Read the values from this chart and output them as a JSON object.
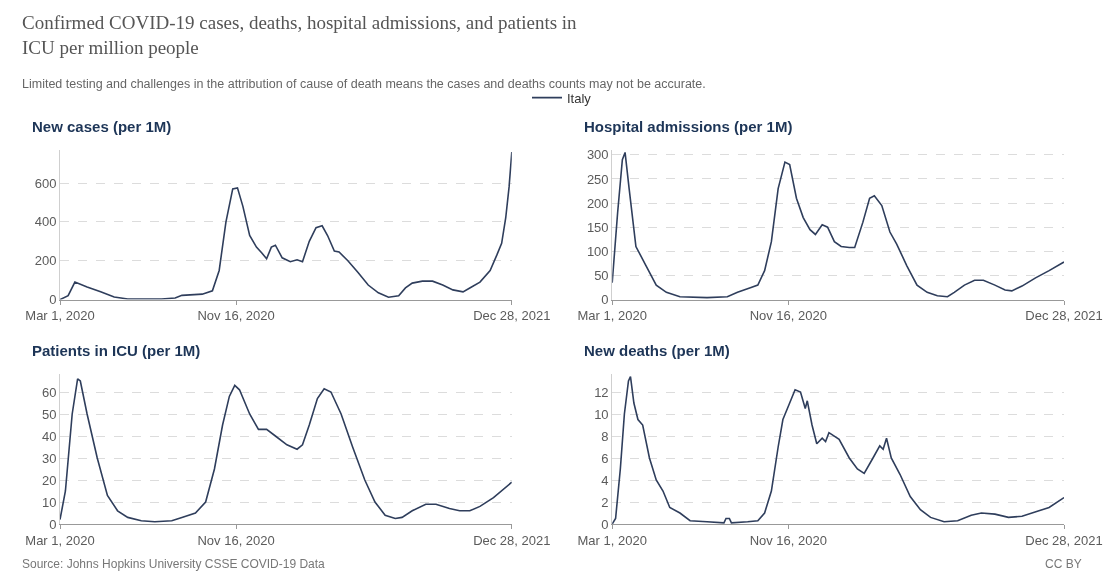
{
  "chart_data": [
    {
      "type": "line",
      "title": "New cases (per 1M)",
      "legend": "top",
      "grid": "y",
      "line_style": "solid",
      "annotations": [
        "Confirmed COVID-19 cases, deaths, hospital admissions, and patients in ICU per million people",
        "Limited testing and challenges in the attribution of cause of death means the cases and deaths counts may not be accurate.",
        "Source: Johns Hopkins University CSSE COVID-19 Data",
        "CC BY"
      ],
      "xlim": [
        "2020-03-01",
        "2021-12-28"
      ],
      "xticks": [
        {
          "value": "2020-03-01",
          "label": "Mar 1, 2020"
        },
        {
          "value": "2020-11-16",
          "label": "Nov 16, 2020"
        },
        {
          "value": "2021-12-28",
          "label": "Dec 28, 2021"
        }
      ],
      "ylim": [
        0,
        770
      ],
      "yticks": [
        0,
        200,
        400,
        600
      ],
      "series": [
        {
          "name": "Italy",
          "color": "#2f3e5c",
          "x": [
            "2020-03-01",
            "2020-03-13",
            "2020-03-23",
            "2020-04-10",
            "2020-04-30",
            "2020-05-20",
            "2020-06-09",
            "2020-07-29",
            "2020-08-18",
            "2020-08-28",
            "2020-09-27",
            "2020-10-12",
            "2020-10-22",
            "2020-11-01",
            "2020-11-11",
            "2020-11-18",
            "2020-11-26",
            "2020-12-06",
            "2020-12-16",
            "2020-12-24",
            "2020-12-31",
            "2021-01-07",
            "2021-01-13",
            "2021-01-23",
            "2021-02-04",
            "2021-02-14",
            "2021-02-22",
            "2021-03-04",
            "2021-03-14",
            "2021-03-23",
            "2021-03-31",
            "2021-04-10",
            "2021-04-17",
            "2021-04-30",
            "2021-05-15",
            "2021-05-30",
            "2021-06-14",
            "2021-06-29",
            "2021-07-14",
            "2021-07-24",
            "2021-08-03",
            "2021-08-18",
            "2021-09-02",
            "2021-09-17",
            "2021-10-02",
            "2021-10-17",
            "2021-10-27",
            "2021-11-11",
            "2021-11-26",
            "2021-12-06",
            "2021-12-13",
            "2021-12-19",
            "2021-12-24",
            "2021-12-28"
          ],
          "values": [
            0,
            20,
            90,
            65,
            40,
            13,
            3,
            3,
            8,
            22,
            28,
            45,
            150,
            400,
            570,
            575,
            480,
            330,
            270,
            240,
            210,
            270,
            280,
            215,
            195,
            205,
            195,
            300,
            370,
            380,
            330,
            250,
            245,
            200,
            140,
            75,
            35,
            12,
            20,
            60,
            85,
            95,
            95,
            75,
            50,
            40,
            60,
            90,
            150,
            230,
            290,
            420,
            580,
            760
          ]
        }
      ]
    },
    {
      "type": "line",
      "title": "Hospital admissions (per 1M)",
      "grid": "y",
      "line_style": "solid",
      "xlim": [
        "2020-03-01",
        "2021-12-28"
      ],
      "xticks": [
        {
          "value": "2020-03-01",
          "label": "Mar 1, 2020"
        },
        {
          "value": "2020-11-16",
          "label": "Nov 16, 2020"
        },
        {
          "value": "2021-12-28",
          "label": "Dec 28, 2021"
        }
      ],
      "ylim": [
        0,
        310
      ],
      "yticks": [
        0,
        50,
        100,
        150,
        200,
        250,
        300
      ],
      "series": [
        {
          "name": "Italy",
          "color": "#2f3e5c",
          "x": [
            "2020-03-01",
            "2020-03-09",
            "2020-03-16",
            "2020-03-20",
            "2020-03-26",
            "2020-04-05",
            "2020-04-20",
            "2020-05-05",
            "2020-05-20",
            "2020-06-09",
            "2020-07-19",
            "2020-08-18",
            "2020-09-02",
            "2020-09-22",
            "2020-10-02",
            "2020-10-12",
            "2020-10-22",
            "2020-11-01",
            "2020-11-11",
            "2020-11-18",
            "2020-11-28",
            "2020-12-08",
            "2020-12-18",
            "2020-12-26",
            "2021-01-05",
            "2021-01-13",
            "2021-01-23",
            "2021-02-02",
            "2021-02-14",
            "2021-02-22",
            "2021-03-06",
            "2021-03-16",
            "2021-03-23",
            "2021-04-03",
            "2021-04-15",
            "2021-04-25",
            "2021-05-10",
            "2021-05-25",
            "2021-06-09",
            "2021-06-24",
            "2021-07-09",
            "2021-07-19",
            "2021-08-03",
            "2021-08-18",
            "2021-08-31",
            "2021-09-17",
            "2021-10-02",
            "2021-10-12",
            "2021-10-27",
            "2021-11-16",
            "2021-12-06",
            "2021-12-28"
          ],
          "values": [
            35,
            180,
            290,
            305,
            230,
            110,
            70,
            30,
            15,
            6,
            4,
            6,
            15,
            25,
            30,
            60,
            120,
            230,
            285,
            280,
            210,
            170,
            145,
            135,
            155,
            150,
            120,
            110,
            108,
            108,
            160,
            210,
            215,
            195,
            140,
            115,
            70,
            30,
            15,
            8,
            6,
            15,
            30,
            40,
            40,
            30,
            20,
            18,
            28,
            45,
            60,
            78
          ]
        }
      ]
    },
    {
      "type": "line",
      "title": "Patients in ICU (per 1M)",
      "grid": "y",
      "line_style": "solid",
      "xlim": [
        "2020-03-01",
        "2021-12-28"
      ],
      "xticks": [
        {
          "value": "2020-03-01",
          "label": "Mar 1, 2020"
        },
        {
          "value": "2020-11-16",
          "label": "Nov 16, 2020"
        },
        {
          "value": "2021-12-28",
          "label": "Dec 28, 2021"
        }
      ],
      "ylim": [
        0,
        68
      ],
      "yticks": [
        0,
        10,
        20,
        30,
        40,
        50,
        60
      ],
      "series": [
        {
          "name": "Italy",
          "color": "#2f3e5c",
          "x": [
            "2020-03-01",
            "2020-03-09",
            "2020-03-19",
            "2020-03-27",
            "2020-03-31",
            "2020-04-10",
            "2020-04-25",
            "2020-05-10",
            "2020-05-25",
            "2020-06-09",
            "2020-06-29",
            "2020-07-19",
            "2020-08-13",
            "2020-08-28",
            "2020-09-17",
            "2020-10-02",
            "2020-10-15",
            "2020-10-27",
            "2020-11-06",
            "2020-11-14",
            "2020-11-21",
            "2020-12-06",
            "2020-12-19",
            "2020-12-31",
            "2021-01-13",
            "2021-01-30",
            "2021-02-14",
            "2021-02-22",
            "2021-03-04",
            "2021-03-16",
            "2021-03-26",
            "2021-04-05",
            "2021-04-20",
            "2021-05-07",
            "2021-05-25",
            "2021-06-09",
            "2021-06-24",
            "2021-07-09",
            "2021-07-19",
            "2021-08-03",
            "2021-08-23",
            "2021-09-07",
            "2021-09-27",
            "2021-10-12",
            "2021-10-27",
            "2021-11-11",
            "2021-12-01",
            "2021-12-28"
          ],
          "values": [
            2,
            15,
            50,
            66,
            65,
            50,
            30,
            13,
            6,
            3,
            1.5,
            1,
            1.5,
            3,
            5,
            10,
            25,
            45,
            58,
            63,
            61,
            50,
            43,
            43,
            40,
            36,
            34,
            36,
            45,
            57,
            61.5,
            60,
            50,
            35,
            20,
            10,
            4,
            2.5,
            3,
            6,
            9,
            9,
            7,
            6,
            6,
            8,
            12,
            19
          ]
        }
      ]
    },
    {
      "type": "line",
      "title": "New deaths (per 1M)",
      "grid": "y",
      "line_style": "solid",
      "xlim": [
        "2020-03-01",
        "2021-12-28"
      ],
      "xticks": [
        {
          "value": "2020-03-01",
          "label": "Mar 1, 2020"
        },
        {
          "value": "2020-11-16",
          "label": "Nov 16, 2020"
        },
        {
          "value": "2021-12-28",
          "label": "Dec 28, 2021"
        }
      ],
      "ylim": [
        0,
        13.6
      ],
      "yticks": [
        0,
        2,
        4,
        6,
        8,
        10,
        12
      ],
      "series": [
        {
          "name": "Italy",
          "color": "#2f3e5c",
          "x": [
            "2020-03-01",
            "2020-03-06",
            "2020-03-13",
            "2020-03-19",
            "2020-03-25",
            "2020-03-28",
            "2020-04-02",
            "2020-04-08",
            "2020-04-15",
            "2020-04-25",
            "2020-05-05",
            "2020-05-15",
            "2020-05-25",
            "2020-06-09",
            "2020-06-24",
            "2020-07-19",
            "2020-08-13",
            "2020-08-16",
            "2020-08-21",
            "2020-08-24",
            "2020-09-17",
            "2020-10-02",
            "2020-10-12",
            "2020-10-22",
            "2020-11-01",
            "2020-11-08",
            "2020-11-18",
            "2020-11-26",
            "2020-12-04",
            "2020-12-11",
            "2020-12-14",
            "2020-12-21",
            "2020-12-28",
            "2021-01-05",
            "2021-01-10",
            "2021-01-15",
            "2021-01-30",
            "2021-02-14",
            "2021-02-26",
            "2021-03-08",
            "2021-03-21",
            "2021-03-31",
            "2021-04-05",
            "2021-04-10",
            "2021-04-17",
            "2021-04-30",
            "2021-05-15",
            "2021-05-30",
            "2021-06-14",
            "2021-07-04",
            "2021-07-24",
            "2021-08-13",
            "2021-08-28",
            "2021-09-17",
            "2021-10-07",
            "2021-10-27",
            "2021-11-21",
            "2021-12-06",
            "2021-12-28"
          ],
          "values": [
            0,
            0.5,
            5,
            10,
            13,
            13.4,
            11,
            9.5,
            9,
            6,
            4,
            3,
            1.5,
            1,
            0.3,
            0.2,
            0.1,
            0.5,
            0.5,
            0.1,
            0.2,
            0.3,
            1,
            3,
            7,
            9.5,
            11,
            12.2,
            12,
            10.5,
            11.2,
            9,
            7.3,
            7.8,
            7.5,
            8.3,
            7.7,
            6,
            5,
            4.6,
            6,
            7.1,
            6.8,
            7.8,
            6,
            4.5,
            2.5,
            1.3,
            0.6,
            0.2,
            0.3,
            0.8,
            1,
            0.9,
            0.6,
            0.7,
            1.2,
            1.5,
            2.4
          ]
        }
      ]
    }
  ]
}
